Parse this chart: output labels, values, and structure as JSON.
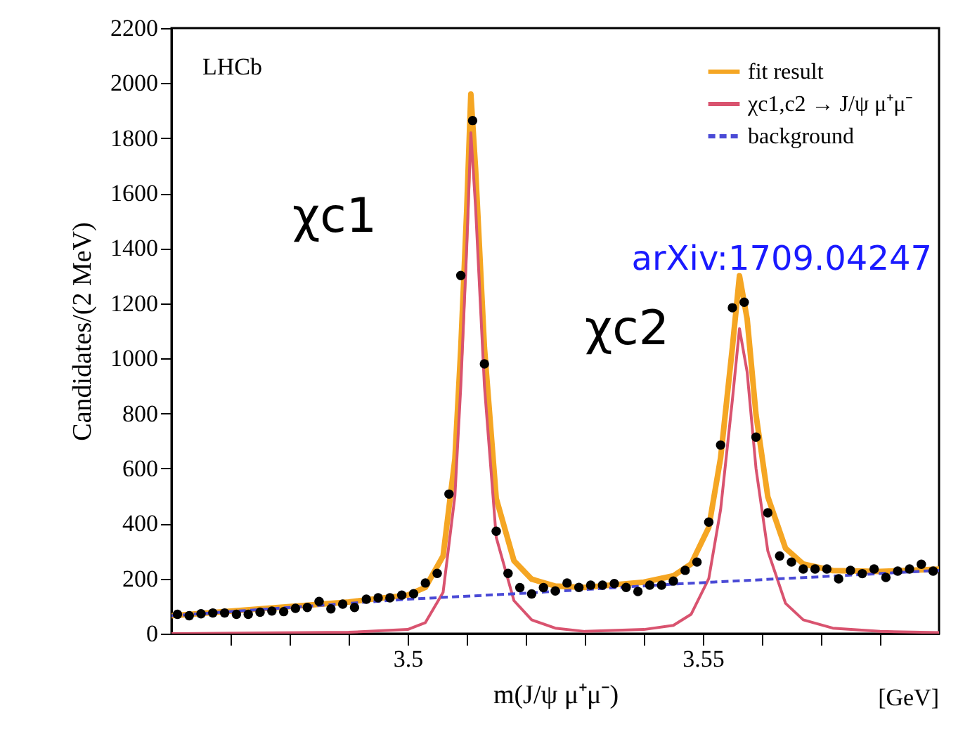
{
  "chart_data": {
    "type": "scatter",
    "ylabel": "Candidates/(2 MeV)",
    "xlabel": "m(J/ψ μ⁺μ⁻)",
    "xlim": [
      3.46,
      3.59
    ],
    "ylim": [
      0,
      2200
    ],
    "xticks": [
      {
        "value": 3.47,
        "label": null
      },
      {
        "value": 3.48,
        "label": null
      },
      {
        "value": 3.49,
        "label": null
      },
      {
        "value": 3.5,
        "label": "3.5"
      },
      {
        "value": 3.51,
        "label": null
      },
      {
        "value": 3.52,
        "label": null
      },
      {
        "value": 3.53,
        "label": null
      },
      {
        "value": 3.54,
        "label": null
      },
      3.55,
      {
        "value": 3.56,
        "label": null
      },
      {
        "value": 3.57,
        "label": null
      },
      {
        "value": 3.58,
        "label": null
      }
    ],
    "yticks": [
      0,
      200,
      400,
      600,
      800,
      1000,
      1200,
      1400,
      1600,
      1800,
      2000,
      2200
    ],
    "grid": false,
    "legend": "top right",
    "series": [
      {
        "type": "line",
        "name": "fit result",
        "color": "#f5a623",
        "line_style": "solid",
        "x": [
          3.46,
          3.49,
          3.5,
          3.503,
          3.506,
          3.508,
          3.509,
          3.51,
          3.5107,
          3.5115,
          3.513,
          3.515,
          3.518,
          3.521,
          3.525,
          3.53,
          3.54,
          3.545,
          3.548,
          3.551,
          3.553,
          3.555,
          3.5562,
          3.5575,
          3.559,
          3.561,
          3.564,
          3.567,
          3.572,
          3.58,
          3.59
        ],
        "values": [
          65,
          115,
          140,
          168,
          282,
          634,
          1035,
          1536,
          1960,
          1688,
          1039,
          491,
          265,
          198,
          173,
          168,
          187,
          210,
          253,
          386,
          638,
          1040,
          1300,
          1143,
          795,
          497,
          310,
          253,
          229,
          226,
          234
        ]
      },
      {
        "type": "line",
        "name": "χc1,c2 → J/ψ μ⁺μ⁻",
        "color": "#d9536f",
        "line_style": "solid",
        "x": [
          3.46,
          3.49,
          3.5,
          3.503,
          3.506,
          3.508,
          3.509,
          3.51,
          3.5107,
          3.5115,
          3.513,
          3.515,
          3.518,
          3.521,
          3.525,
          3.53,
          3.54,
          3.545,
          3.548,
          3.551,
          3.553,
          3.555,
          3.5562,
          3.5575,
          3.559,
          3.561,
          3.564,
          3.567,
          3.572,
          3.58,
          3.59
        ],
        "values": [
          0,
          5,
          15,
          40,
          150,
          500,
          900,
          1400,
          1820,
          1550,
          900,
          350,
          120,
          50,
          20,
          8,
          15,
          30,
          70,
          200,
          450,
          850,
          1108,
          950,
          600,
          300,
          110,
          50,
          20,
          8,
          4
        ]
      },
      {
        "type": "line",
        "name": "background",
        "color": "#4a4ad6",
        "line_style": "dashed",
        "x": [
          3.46,
          3.49,
          3.5,
          3.52,
          3.545,
          3.572,
          3.59
        ],
        "values": [
          65,
          110,
          125,
          147,
          180,
          209,
          230
        ]
      },
      {
        "marker": "circle",
        "color": "#000000",
        "x": [
          3.461,
          3.463,
          3.465,
          3.467,
          3.469,
          3.471,
          3.473,
          3.475,
          3.477,
          3.479,
          3.481,
          3.483,
          3.485,
          3.487,
          3.489,
          3.491,
          3.493,
          3.495,
          3.497,
          3.499,
          3.501,
          3.503,
          3.505,
          3.507,
          3.509,
          3.511,
          3.513,
          3.515,
          3.517,
          3.519,
          3.521,
          3.523,
          3.525,
          3.527,
          3.529,
          3.531,
          3.533,
          3.535,
          3.537,
          3.539,
          3.541,
          3.543,
          3.545,
          3.547,
          3.549,
          3.551,
          3.553,
          3.555,
          3.557,
          3.559,
          3.561,
          3.563,
          3.565,
          3.567,
          3.569,
          3.571,
          3.573,
          3.575,
          3.577,
          3.579,
          3.581,
          3.583,
          3.585,
          3.587,
          3.589
        ],
        "values": [
          70,
          65,
          72,
          75,
          75,
          70,
          70,
          78,
          82,
          80,
          92,
          95,
          117,
          90,
          107,
          95,
          125,
          130,
          130,
          140,
          145,
          184,
          219,
          507,
          1301,
          1864,
          980,
          372,
          219,
          167,
          144,
          167,
          155,
          184,
          168,
          176,
          176,
          182,
          168,
          153,
          176,
          176,
          191,
          230,
          260,
          405,
          685,
          1184,
          1204,
          714,
          439,
          282,
          260,
          235,
          235,
          235,
          199,
          230,
          218,
          235,
          204,
          227,
          235,
          252,
          227
        ]
      }
    ],
    "annotations": [
      "LHCb",
      "χc1",
      "χc2",
      "arXiv:1709.04247",
      "[GeV]"
    ]
  }
}
